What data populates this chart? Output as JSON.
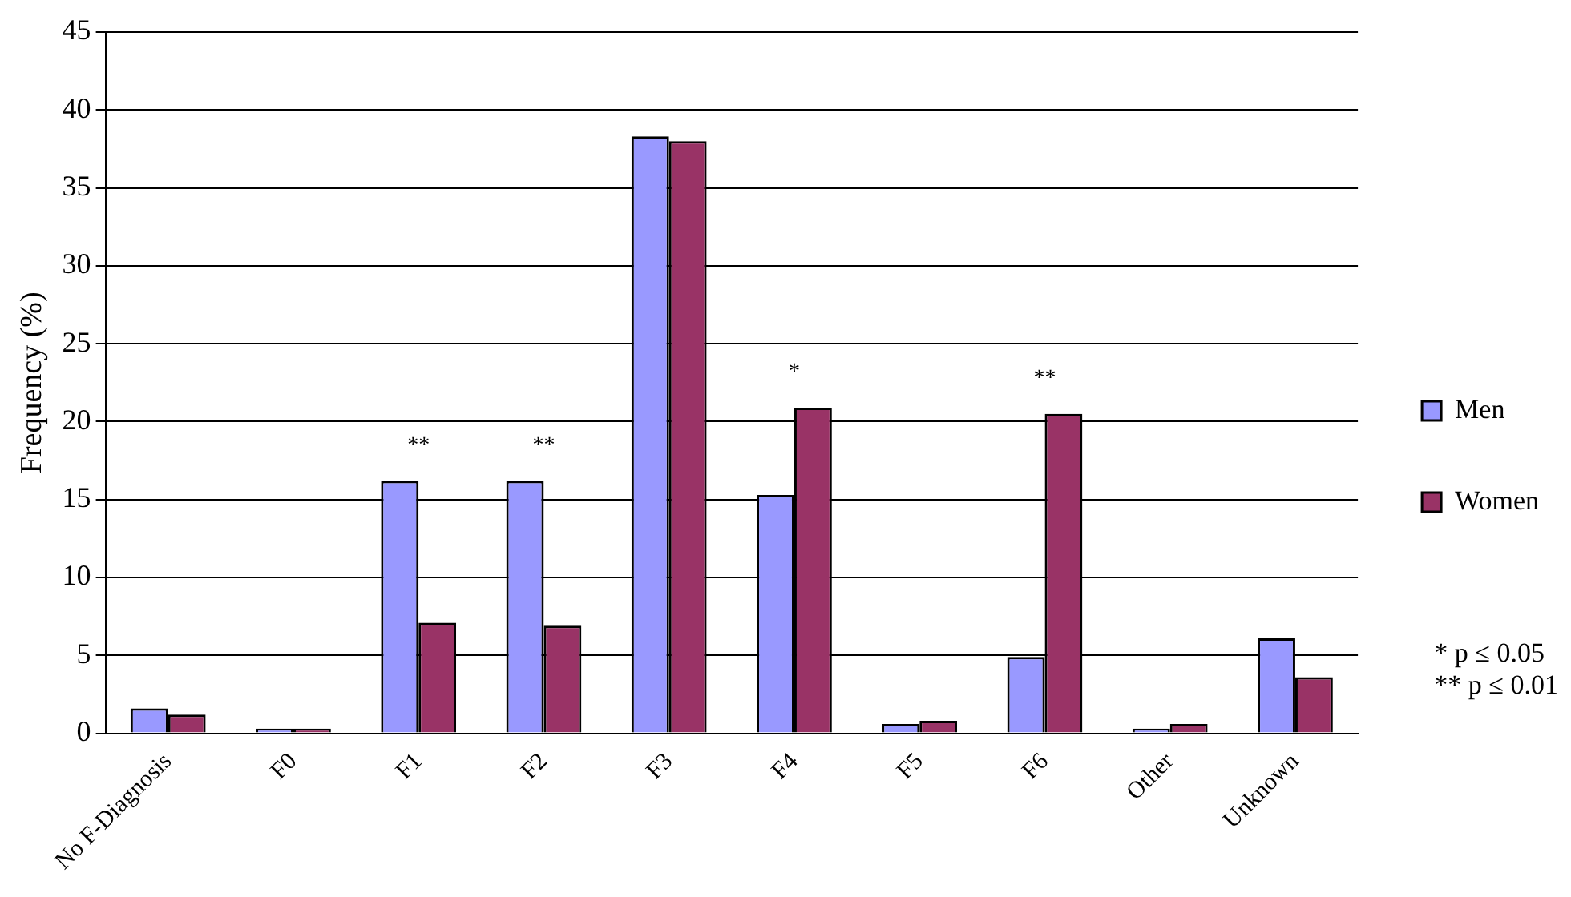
{
  "chart_data": {
    "type": "bar",
    "ylabel": "Frequency (%)",
    "categories": [
      "No F-Diagnosis",
      "F0",
      "F1",
      "F2",
      "F3",
      "F4",
      "F5",
      "F6",
      "Other",
      "Unknown"
    ],
    "series": [
      {
        "name": "Men",
        "color": "#9999ff",
        "values": [
          1.6,
          0.3,
          16.2,
          16.2,
          38.3,
          15.3,
          0.6,
          4.9,
          0.3,
          6.1
        ]
      },
      {
        "name": "Women",
        "color": "#993366",
        "values": [
          1.2,
          0.3,
          7.1,
          6.9,
          38.0,
          20.9,
          0.8,
          20.5,
          0.6,
          3.6
        ]
      }
    ],
    "ylim": [
      0,
      45
    ],
    "yticks": [
      0,
      5,
      10,
      15,
      20,
      25,
      30,
      35,
      40,
      45
    ],
    "grid": "y",
    "legend": "right",
    "annotations": [
      {
        "text": "**",
        "x": "F1",
        "y": 16.2
      },
      {
        "text": "**",
        "x": "F2",
        "y": 16.2
      },
      {
        "text": "*",
        "x": "F4",
        "y": 20.9
      },
      {
        "text": "**",
        "x": "F6",
        "y": 20.5
      },
      "*  p ≤ 0.05",
      "** p ≤ 0.01"
    ]
  }
}
